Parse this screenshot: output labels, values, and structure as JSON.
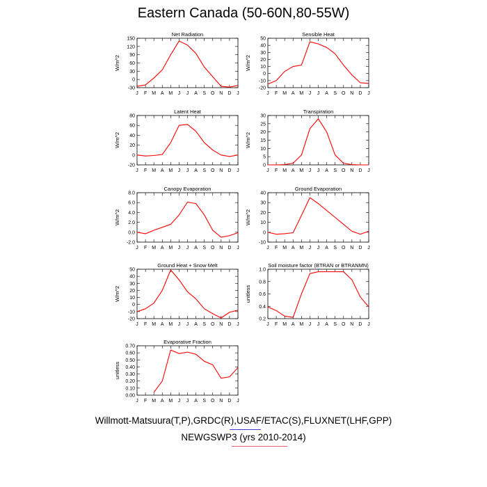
{
  "title": "Eastern Canada (50-60N,80-55W)",
  "footer": {
    "line1": "Willmott-Matsuura(T,P),GRDC(R),USAF/ETAC(S),FLUXNET(LHF,GPP)",
    "line2": "NEWGSWP3 (yrs 2010-2014)"
  },
  "colors": {
    "series": "#ff0000",
    "legend_obs": "#3b3bd8",
    "legend_model": "#e06070"
  },
  "months": [
    "J",
    "F",
    "M",
    "A",
    "M",
    "J",
    "J",
    "A",
    "S",
    "O",
    "N",
    "D",
    "J"
  ],
  "chart_data": [
    {
      "type": "line",
      "title": "Net Radiation",
      "ylabel": "W/m^2",
      "yticks": [
        "150",
        "120",
        "90",
        "60",
        "30",
        "0",
        "-30"
      ],
      "ylim": [
        -30,
        150
      ],
      "series": [
        {
          "values": [
            -25,
            -20,
            5,
            35,
            90,
            140,
            125,
            95,
            45,
            10,
            -25,
            -28,
            -22
          ]
        }
      ]
    },
    {
      "type": "line",
      "title": "Sensible Heat",
      "ylabel": "W/m^2",
      "yticks": [
        "50",
        "40",
        "30",
        "20",
        "10",
        "0",
        "-10",
        "-20"
      ],
      "ylim": [
        -20,
        50
      ],
      "series": [
        {
          "values": [
            -15,
            -10,
            3,
            10,
            12,
            45,
            42,
            37,
            28,
            12,
            -2,
            -13,
            -14
          ]
        }
      ]
    },
    {
      "type": "line",
      "title": "Latent Heat",
      "ylabel": "W/m^2",
      "yticks": [
        "80",
        "60",
        "40",
        "20",
        "0",
        "-20"
      ],
      "ylim": [
        -20,
        80
      ],
      "series": [
        {
          "values": [
            0,
            -2,
            -1,
            1,
            25,
            60,
            62,
            48,
            25,
            10,
            0,
            -3,
            0
          ]
        }
      ]
    },
    {
      "type": "line",
      "title": "Transpiration",
      "ylabel": "W/m^2",
      "yticks": [
        "30",
        "25",
        "20",
        "15",
        "10",
        "5",
        "0"
      ],
      "ylim": [
        0,
        30
      ],
      "series": [
        {
          "values": [
            0,
            0,
            0.2,
            1,
            6,
            22,
            28,
            20,
            6,
            1,
            0.2,
            0,
            0
          ]
        }
      ]
    },
    {
      "type": "line",
      "title": "Canopy Evaporation",
      "ylabel": "W/m^2",
      "yticks": [
        "8.0",
        "6.0",
        "4.0",
        "2.0",
        "0.0",
        "-2.0"
      ],
      "ylim": [
        -2,
        8
      ],
      "series": [
        {
          "values": [
            0,
            -0.3,
            0.4,
            1.0,
            1.6,
            3.5,
            6.1,
            5.8,
            3.5,
            0.4,
            -1.0,
            -0.7,
            -0.1
          ]
        }
      ]
    },
    {
      "type": "line",
      "title": "Ground Evaporation",
      "ylabel": "W/m^2",
      "yticks": [
        "40",
        "30",
        "20",
        "10",
        "0",
        "-10"
      ],
      "ylim": [
        -10,
        40
      ],
      "series": [
        {
          "values": [
            0,
            -2,
            -1.5,
            -0.5,
            17,
            35,
            29,
            22,
            15,
            8,
            1,
            -2,
            1
          ]
        }
      ]
    },
    {
      "type": "line",
      "title": "Ground Heat + Snow Melt",
      "ylabel": "W/m^2",
      "yticks": [
        "50",
        "40",
        "30",
        "20",
        "10",
        "0",
        "-10",
        "-20"
      ],
      "ylim": [
        -20,
        50
      ],
      "series": [
        {
          "values": [
            -10,
            -6,
            2,
            20,
            49,
            35,
            18,
            8,
            -6,
            -13,
            -19,
            -11,
            -8
          ]
        }
      ]
    },
    {
      "type": "line",
      "title": "Soil moisture factor (BTRAN or BTRANMN)",
      "ylabel": "unitless",
      "yticks": [
        "1.0",
        "0.8",
        "0.6",
        "0.4",
        "0.2"
      ],
      "ylim": [
        0.2,
        1.0
      ],
      "series": [
        {
          "values": [
            0.39,
            0.33,
            0.24,
            0.22,
            0.6,
            0.93,
            0.96,
            0.96,
            0.96,
            0.96,
            0.83,
            0.55,
            0.39
          ]
        }
      ]
    },
    {
      "type": "line",
      "title": "Evaporative Fraction",
      "ylabel": "unitless",
      "yticks": [
        "0.70",
        "0.60",
        "0.50",
        "0.40",
        "0.30",
        "0.20",
        "0.10",
        "0.00"
      ],
      "ylim": [
        0,
        0.7
      ],
      "series": [
        {
          "values": [
            null,
            null,
            0.04,
            0.2,
            0.64,
            0.59,
            0.61,
            0.58,
            0.48,
            0.43,
            0.24,
            0.26,
            0.39
          ]
        }
      ]
    }
  ]
}
